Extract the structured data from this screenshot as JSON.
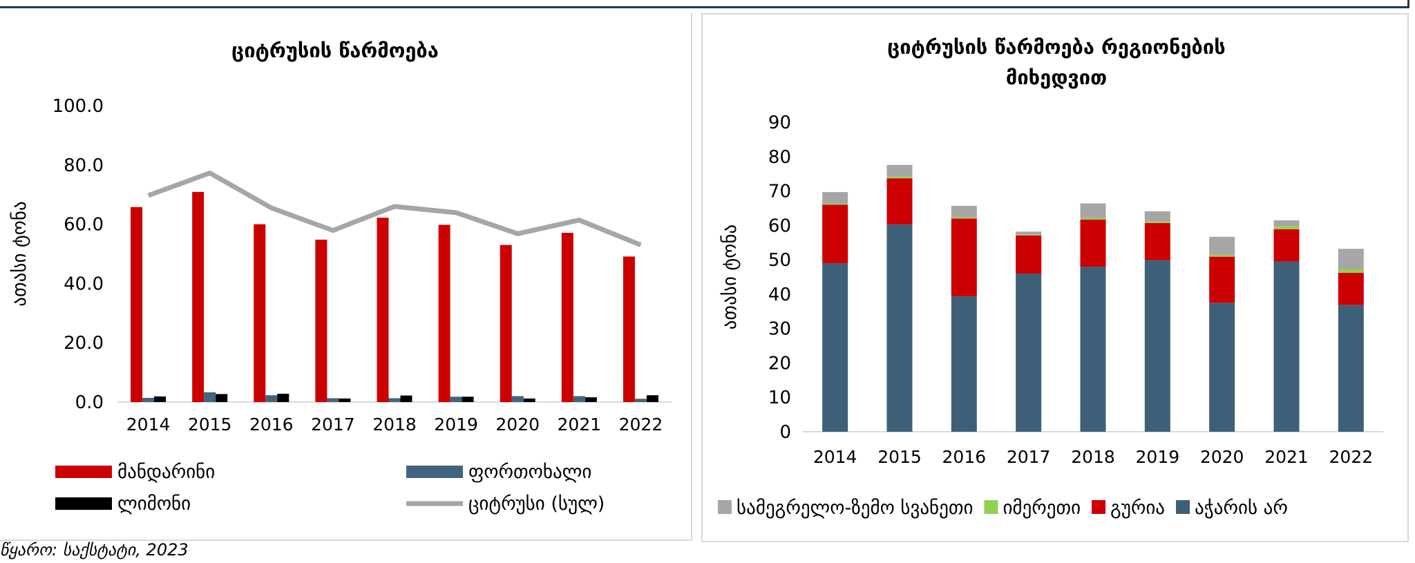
{
  "chart_data": [
    {
      "type": "bar",
      "title": "ციტრუსის წარმოება",
      "ylabel": "ათასი ტონა",
      "xlabel": "",
      "ylim": [
        0,
        100
      ],
      "yticks": [
        "0.0",
        "20.0",
        "40.0",
        "60.0",
        "80.0",
        "100.0"
      ],
      "grid": false,
      "legend_position": "bottom",
      "categories": [
        "2014",
        "2015",
        "2016",
        "2017",
        "2018",
        "2019",
        "2020",
        "2021",
        "2022"
      ],
      "series": [
        {
          "name": "მანდარინი",
          "kind": "bar",
          "color": "#cc0000",
          "values": [
            65.8,
            70.9,
            60.0,
            54.8,
            62.2,
            59.8,
            53.0,
            57.1,
            49.1
          ]
        },
        {
          "name": "ფორთოხალი",
          "kind": "bar",
          "color": "#43647e",
          "values": [
            1.4,
            3.3,
            2.3,
            1.3,
            1.3,
            1.8,
            2.0,
            2.0,
            1.1
          ]
        },
        {
          "name": "ლიმონი",
          "kind": "bar",
          "color": "#000000",
          "values": [
            1.9,
            2.7,
            2.8,
            1.2,
            2.2,
            1.8,
            1.2,
            1.6,
            2.3
          ]
        },
        {
          "name": "ციტრუსი (სულ)",
          "kind": "line",
          "color": "#a6a6a6",
          "values": [
            69.7,
            77.3,
            65.5,
            57.9,
            66.0,
            63.9,
            56.8,
            61.4,
            53.0
          ]
        }
      ]
    },
    {
      "type": "bar",
      "stacked": true,
      "title": "ციტრუსის წარმოება რეგიონების მიხედვით",
      "title_lines": [
        "ციტრუსის წარმოება რეგიონების",
        "მიხედვით"
      ],
      "ylabel": "ათასი ტონა",
      "xlabel": "",
      "ylim": [
        0,
        90
      ],
      "yticks": [
        "0",
        "10",
        "20",
        "30",
        "40",
        "50",
        "60",
        "70",
        "80",
        "90"
      ],
      "grid": false,
      "legend_position": "bottom",
      "categories": [
        "2014",
        "2015",
        "2016",
        "2017",
        "2018",
        "2019",
        "2020",
        "2021",
        "2022"
      ],
      "series": [
        {
          "name": "აჭარის არ",
          "color": "#3e5f78",
          "values": [
            49.0,
            60.3,
            39.4,
            46.0,
            48.0,
            49.9,
            37.5,
            49.5,
            36.9
          ]
        },
        {
          "name": "გურია",
          "color": "#cc0000",
          "values": [
            17.0,
            13.4,
            22.6,
            11.1,
            13.7,
            10.8,
            13.4,
            9.4,
            9.3
          ]
        },
        {
          "name": "იმერეთი",
          "color": "#92d050",
          "values": [
            0.3,
            0.5,
            0.4,
            0.2,
            0.5,
            0.4,
            0.6,
            0.9,
            1.0
          ]
        },
        {
          "name": "სამეგრელო-ზემო სვანეთი",
          "color": "#a6a6a6",
          "values": [
            3.4,
            3.4,
            3.3,
            0.9,
            4.2,
            3.0,
            5.2,
            1.7,
            6.0
          ]
        }
      ],
      "legend_order": [
        3,
        2,
        1,
        0
      ]
    }
  ],
  "source_text": "წყარო: საქსტატი, 2023"
}
